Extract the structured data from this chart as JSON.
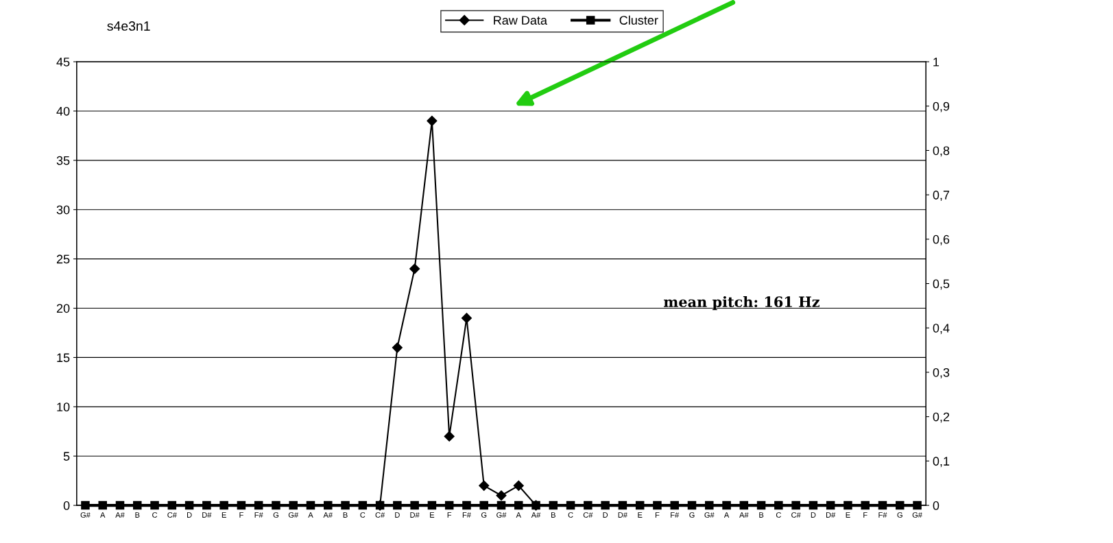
{
  "chart_data": {
    "type": "line",
    "title": "s4e3n1",
    "categories": [
      "G#",
      "A",
      "A#",
      "B",
      "C",
      "C#",
      "D",
      "D#",
      "E",
      "F",
      "F#",
      "G",
      "G#",
      "A",
      "A#",
      "B",
      "C",
      "C#",
      "D",
      "D#",
      "E",
      "F",
      "F#",
      "G",
      "G#",
      "A",
      "A#",
      "B",
      "C",
      "C#",
      "D",
      "D#",
      "E",
      "F",
      "F#",
      "G",
      "G#",
      "A",
      "A#",
      "B",
      "C",
      "C#",
      "D",
      "D#",
      "E",
      "F",
      "F#",
      "G",
      "G#"
    ],
    "series": [
      {
        "name": "Raw Data",
        "color": "#000000",
        "marker": "diamond",
        "values": [
          null,
          null,
          null,
          null,
          null,
          null,
          null,
          null,
          null,
          null,
          null,
          null,
          null,
          null,
          null,
          null,
          null,
          0,
          16,
          24,
          39,
          7,
          19,
          2,
          1,
          2,
          0,
          null,
          null,
          null,
          null,
          null,
          null,
          null,
          null,
          null,
          null,
          null,
          null,
          null,
          null,
          null,
          null,
          null,
          null,
          null,
          null,
          null,
          null
        ]
      },
      {
        "name": "Cluster",
        "color": "#000000",
        "marker": "square",
        "axis": "y2",
        "values": [
          0,
          0,
          0,
          0,
          0,
          0,
          0,
          0,
          0,
          0,
          0,
          0,
          0,
          0,
          0,
          0,
          0,
          0,
          0,
          0,
          0,
          0,
          0,
          0,
          0,
          0,
          0,
          0,
          0,
          0,
          0,
          0,
          0,
          0,
          0,
          0,
          0,
          0,
          0,
          0,
          0,
          0,
          0,
          0,
          0,
          0,
          0,
          0,
          0
        ]
      }
    ],
    "ylim": [
      0,
      45
    ],
    "yticks": [
      0,
      5,
      10,
      15,
      20,
      25,
      30,
      35,
      40,
      45
    ],
    "y2lim": [
      0,
      1
    ],
    "y2ticks": [
      0,
      {
        "value": 0.1,
        "label": "0,1"
      },
      {
        "value": 0.2,
        "label": "0,2"
      },
      {
        "value": 0.3,
        "label": "0,3"
      },
      {
        "value": 0.4,
        "label": "0,4"
      },
      {
        "value": 0.5,
        "label": "0,5"
      },
      {
        "value": 0.6,
        "label": "0,6"
      },
      {
        "value": 0.7,
        "label": "0,7"
      },
      {
        "value": 0.8,
        "label": "0,8"
      },
      {
        "value": 0.9,
        "label": "0,9"
      },
      1
    ],
    "annotations": [
      "mean pitch: 161 Hz"
    ],
    "grid": "y",
    "legend": "top",
    "line_style": "solid"
  }
}
